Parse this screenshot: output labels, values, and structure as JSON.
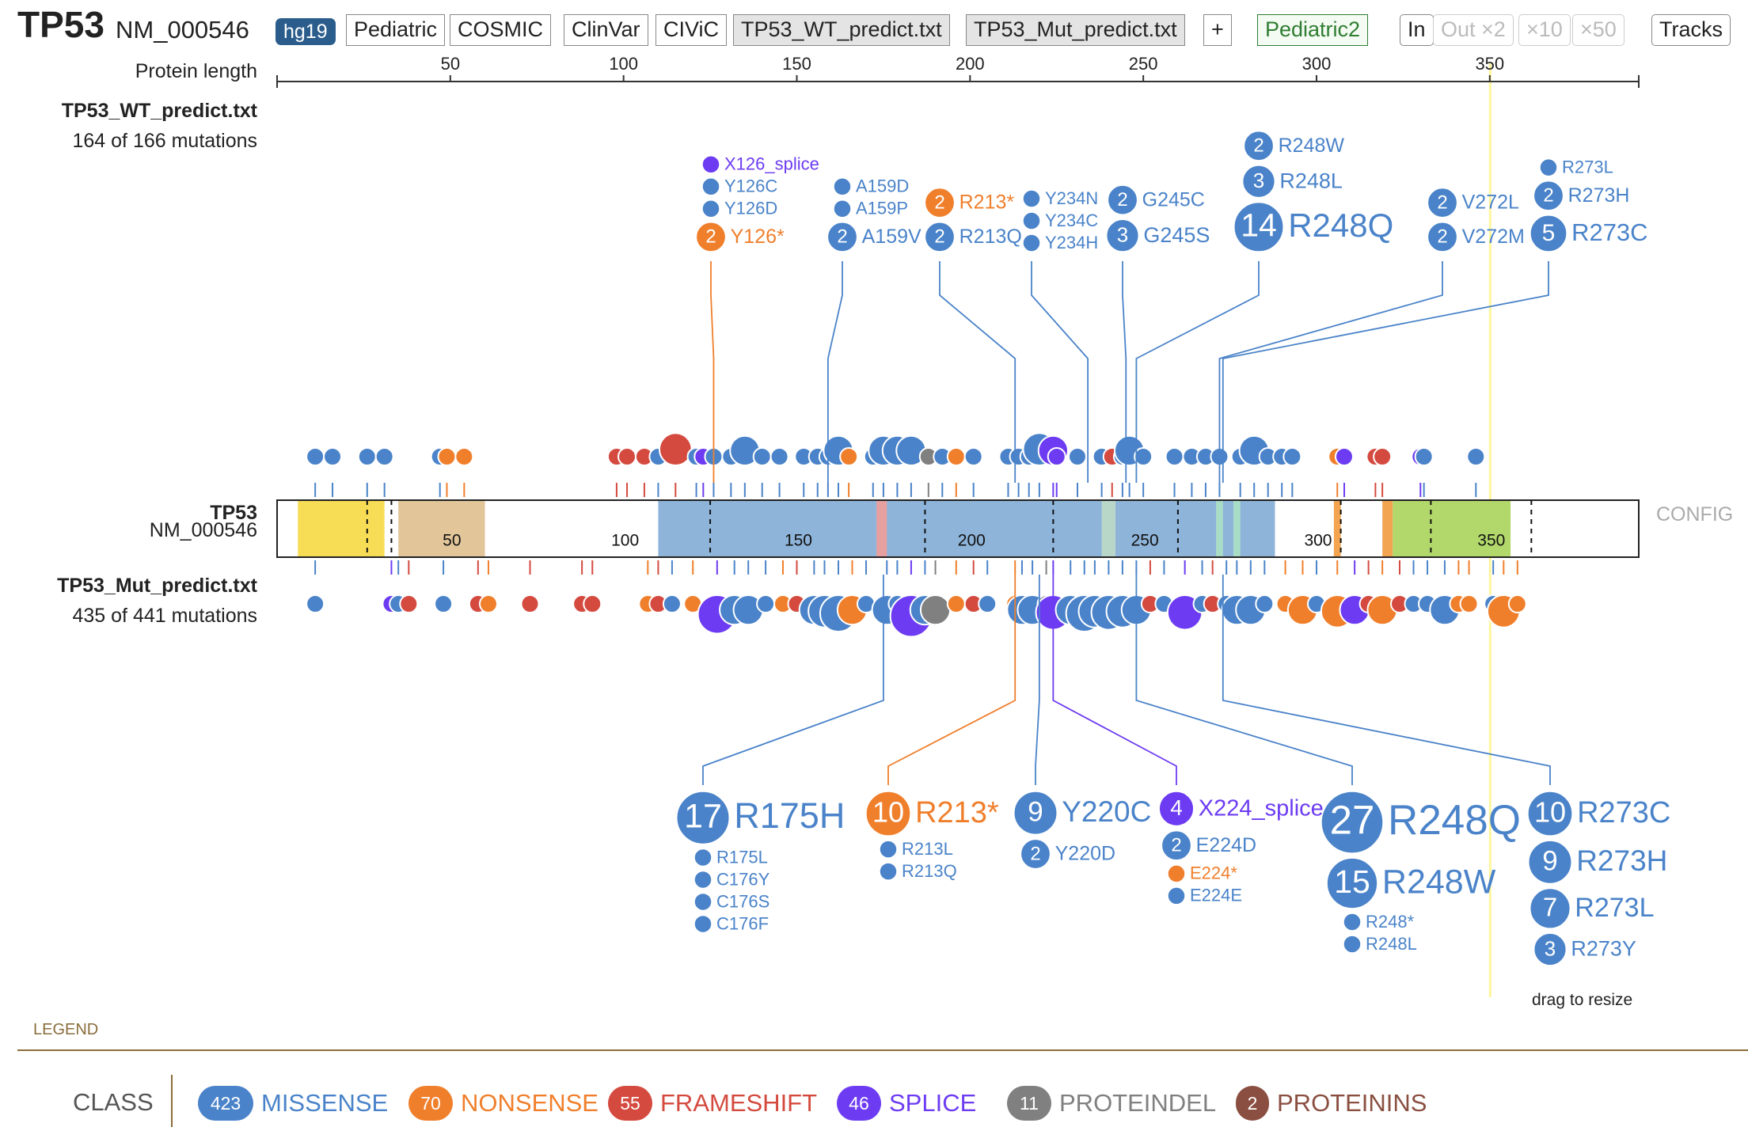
{
  "header": {
    "gene": "TP53",
    "isoform": "NM_000546",
    "genome": "hg19",
    "buttons": [
      {
        "label": "Pediatric",
        "style": "plain"
      },
      {
        "label": "COSMIC",
        "style": "plain"
      },
      {
        "label": "ClinVar",
        "style": "plain"
      },
      {
        "label": "CIViC",
        "style": "plain"
      },
      {
        "label": "TP53_WT_predict.txt",
        "style": "grey"
      },
      {
        "label": "TP53_Mut_predict.txt",
        "style": "grey"
      },
      {
        "label": "+",
        "style": "plain"
      }
    ],
    "pediatric2": "Pediatric2",
    "zoom": {
      "in": "In",
      "out": "Out ×2",
      "x10": "×10",
      "x50": "×50"
    },
    "tracks_label": "Tracks"
  },
  "ruler": {
    "label": "Protein length",
    "protein_length": 393,
    "ticks": [
      "50",
      "100",
      "150",
      "200",
      "250",
      "300",
      "350"
    ],
    "highlight_aa": 350,
    "highlight_color": "#fff59d"
  },
  "tracks": {
    "wt": {
      "name": "TP53_WT_predict.txt",
      "count_text": "164 of 166 mutations"
    },
    "gene": {
      "name": "TP53",
      "isoform": "NM_000546",
      "config_label": "CONFIG"
    },
    "mut": {
      "name": "TP53_Mut_predict.txt",
      "count_text": "435 of 441 mutations"
    },
    "resize_hint": "drag to resize"
  },
  "domains": [
    {
      "start": 6,
      "end": 29,
      "color": "#f7dd55"
    },
    {
      "start": 29,
      "end": 31,
      "color": "#f7dd55"
    },
    {
      "start": 35,
      "end": 60,
      "color": "#e2c69a"
    },
    {
      "start": 110,
      "end": 288,
      "color": "#8eb4d9"
    },
    {
      "start": 173,
      "end": 176,
      "color": "#e6a0a0"
    },
    {
      "start": 238,
      "end": 242,
      "color": "#b9d7c9"
    },
    {
      "start": 271,
      "end": 273,
      "color": "#a9dcc6"
    },
    {
      "start": 276,
      "end": 278,
      "color": "#a9dcc6"
    },
    {
      "start": 305,
      "end": 307,
      "color": "#f2a451"
    },
    {
      "start": 319,
      "end": 322,
      "color": "#f2a451"
    },
    {
      "start": 322,
      "end": 356,
      "color": "#b2d86b"
    }
  ],
  "domain_dividers": [
    26,
    33,
    125,
    187,
    224,
    260,
    307,
    333,
    362
  ],
  "domain_labels": [
    "50",
    "100",
    "150",
    "200",
    "250",
    "300",
    "350"
  ],
  "classes": {
    "missense": {
      "label": "MISSENSE",
      "count": "423",
      "color": "#4a83c9"
    },
    "nonsense": {
      "label": "NONSENSE",
      "count": "70",
      "color": "#f07f2c"
    },
    "frameshift": {
      "label": "FRAMESHIFT",
      "count": "55",
      "color": "#d44a3f"
    },
    "splice": {
      "label": "SPLICE",
      "count": "46",
      "color": "#6d3cf2"
    },
    "proteindel": {
      "label": "PROTEINDEL",
      "count": "11",
      "color": "#808080"
    },
    "proteinins": {
      "label": "PROTEININS",
      "count": "2",
      "color": "#8a4f41"
    }
  },
  "legend": {
    "title": "LEGEND",
    "class_label": "CLASS",
    "order": [
      "missense",
      "nonsense",
      "frameshift",
      "splice",
      "proteindel",
      "proteinins"
    ]
  },
  "wt_disks": [
    {
      "aa": 11,
      "c": "missense",
      "n": 1
    },
    {
      "aa": 16,
      "c": "missense",
      "n": 1
    },
    {
      "aa": 26,
      "c": "missense",
      "n": 1
    },
    {
      "aa": 31,
      "c": "missense",
      "n": 1
    },
    {
      "aa": 47,
      "c": "missense",
      "n": 1
    },
    {
      "aa": 49,
      "c": "nonsense",
      "n": 1
    },
    {
      "aa": 54,
      "c": "nonsense",
      "n": 1
    },
    {
      "aa": 98,
      "c": "frameshift",
      "n": 1
    },
    {
      "aa": 101,
      "c": "frameshift",
      "n": 1
    },
    {
      "aa": 106,
      "c": "frameshift",
      "n": 1
    },
    {
      "aa": 110,
      "c": "missense",
      "n": 1
    },
    {
      "aa": 115,
      "c": "frameshift",
      "n": 3
    },
    {
      "aa": 121,
      "c": "missense",
      "n": 1
    },
    {
      "aa": 123,
      "c": "splice",
      "n": 1
    },
    {
      "aa": 126,
      "c": "missense",
      "n": 1
    },
    {
      "aa": 131,
      "c": "missense",
      "n": 1
    },
    {
      "aa": 135,
      "c": "missense",
      "n": 2
    },
    {
      "aa": 140,
      "c": "missense",
      "n": 1
    },
    {
      "aa": 145,
      "c": "missense",
      "n": 1
    },
    {
      "aa": 152,
      "c": "missense",
      "n": 1
    },
    {
      "aa": 156,
      "c": "missense",
      "n": 1
    },
    {
      "aa": 159,
      "c": "missense",
      "n": 1
    },
    {
      "aa": 162,
      "c": "missense",
      "n": 2
    },
    {
      "aa": 165,
      "c": "nonsense",
      "n": 1
    },
    {
      "aa": 172,
      "c": "missense",
      "n": 1
    },
    {
      "aa": 175,
      "c": "missense",
      "n": 2
    },
    {
      "aa": 179,
      "c": "missense",
      "n": 2
    },
    {
      "aa": 183,
      "c": "missense",
      "n": 2
    },
    {
      "aa": 188,
      "c": "proteindel",
      "n": 1
    },
    {
      "aa": 192,
      "c": "missense",
      "n": 1
    },
    {
      "aa": 196,
      "c": "nonsense",
      "n": 1
    },
    {
      "aa": 201,
      "c": "missense",
      "n": 1
    },
    {
      "aa": 211,
      "c": "missense",
      "n": 1
    },
    {
      "aa": 214,
      "c": "missense",
      "n": 1
    },
    {
      "aa": 217,
      "c": "missense",
      "n": 1
    },
    {
      "aa": 220,
      "c": "missense",
      "n": 3
    },
    {
      "aa": 224,
      "c": "splice",
      "n": 2
    },
    {
      "aa": 225,
      "c": "splice",
      "n": 1
    },
    {
      "aa": 231,
      "c": "missense",
      "n": 1
    },
    {
      "aa": 238,
      "c": "missense",
      "n": 1
    },
    {
      "aa": 241,
      "c": "frameshift",
      "n": 1
    },
    {
      "aa": 244,
      "c": "missense",
      "n": 1
    },
    {
      "aa": 246,
      "c": "missense",
      "n": 2
    },
    {
      "aa": 250,
      "c": "missense",
      "n": 1
    },
    {
      "aa": 259,
      "c": "missense",
      "n": 1
    },
    {
      "aa": 264,
      "c": "missense",
      "n": 1
    },
    {
      "aa": 268,
      "c": "missense",
      "n": 1
    },
    {
      "aa": 272,
      "c": "missense",
      "n": 1
    },
    {
      "aa": 278,
      "c": "missense",
      "n": 1
    },
    {
      "aa": 282,
      "c": "missense",
      "n": 2
    },
    {
      "aa": 286,
      "c": "missense",
      "n": 1
    },
    {
      "aa": 290,
      "c": "missense",
      "n": 1
    },
    {
      "aa": 293,
      "c": "missense",
      "n": 1
    },
    {
      "aa": 306,
      "c": "nonsense",
      "n": 1
    },
    {
      "aa": 308,
      "c": "splice",
      "n": 1
    },
    {
      "aa": 317,
      "c": "frameshift",
      "n": 1
    },
    {
      "aa": 319,
      "c": "frameshift",
      "n": 1
    },
    {
      "aa": 330,
      "c": "splice",
      "n": 1
    },
    {
      "aa": 331,
      "c": "missense",
      "n": 1
    },
    {
      "aa": 346,
      "c": "missense",
      "n": 1
    }
  ],
  "mut_disks": [
    {
      "aa": 11,
      "c": "missense",
      "n": 1
    },
    {
      "aa": 33,
      "c": "splice",
      "n": 1
    },
    {
      "aa": 35,
      "c": "missense",
      "n": 1
    },
    {
      "aa": 38,
      "c": "frameshift",
      "n": 1
    },
    {
      "aa": 48,
      "c": "missense",
      "n": 1
    },
    {
      "aa": 58,
      "c": "frameshift",
      "n": 1
    },
    {
      "aa": 61,
      "c": "nonsense",
      "n": 1
    },
    {
      "aa": 73,
      "c": "frameshift",
      "n": 1
    },
    {
      "aa": 88,
      "c": "frameshift",
      "n": 1
    },
    {
      "aa": 91,
      "c": "frameshift",
      "n": 1
    },
    {
      "aa": 107,
      "c": "nonsense",
      "n": 1
    },
    {
      "aa": 110,
      "c": "frameshift",
      "n": 1
    },
    {
      "aa": 114,
      "c": "missense",
      "n": 1
    },
    {
      "aa": 120,
      "c": "nonsense",
      "n": 1
    },
    {
      "aa": 127,
      "c": "splice",
      "n": 6
    },
    {
      "aa": 132,
      "c": "missense",
      "n": 2
    },
    {
      "aa": 136,
      "c": "missense",
      "n": 2
    },
    {
      "aa": 141,
      "c": "missense",
      "n": 1
    },
    {
      "aa": 146,
      "c": "nonsense",
      "n": 1
    },
    {
      "aa": 150,
      "c": "frameshift",
      "n": 1
    },
    {
      "aa": 155,
      "c": "missense",
      "n": 2
    },
    {
      "aa": 158,
      "c": "missense",
      "n": 3
    },
    {
      "aa": 162,
      "c": "missense",
      "n": 5
    },
    {
      "aa": 166,
      "c": "nonsense",
      "n": 2
    },
    {
      "aa": 170,
      "c": "missense",
      "n": 1
    },
    {
      "aa": 176,
      "c": "missense",
      "n": 2
    },
    {
      "aa": 179,
      "c": "missense",
      "n": 1
    },
    {
      "aa": 183,
      "c": "splice",
      "n": 8
    },
    {
      "aa": 187,
      "c": "missense",
      "n": 2
    },
    {
      "aa": 190,
      "c": "proteindel",
      "n": 2
    },
    {
      "aa": 196,
      "c": "nonsense",
      "n": 1
    },
    {
      "aa": 201,
      "c": "frameshift",
      "n": 1
    },
    {
      "aa": 205,
      "c": "missense",
      "n": 1
    },
    {
      "aa": 213,
      "c": "nonsense",
      "n": 1
    },
    {
      "aa": 215,
      "c": "missense",
      "n": 2
    },
    {
      "aa": 218,
      "c": "missense",
      "n": 2
    },
    {
      "aa": 222,
      "c": "proteindel",
      "n": 1
    },
    {
      "aa": 224,
      "c": "splice",
      "n": 4
    },
    {
      "aa": 229,
      "c": "missense",
      "n": 2
    },
    {
      "aa": 233,
      "c": "missense",
      "n": 5
    },
    {
      "aa": 236,
      "c": "missense",
      "n": 3
    },
    {
      "aa": 240,
      "c": "missense",
      "n": 4
    },
    {
      "aa": 244,
      "c": "missense",
      "n": 3
    },
    {
      "aa": 248,
      "c": "missense",
      "n": 2
    },
    {
      "aa": 252,
      "c": "frameshift",
      "n": 1
    },
    {
      "aa": 256,
      "c": "missense",
      "n": 1
    },
    {
      "aa": 262,
      "c": "splice",
      "n": 4
    },
    {
      "aa": 267,
      "c": "missense",
      "n": 1
    },
    {
      "aa": 270,
      "c": "frameshift",
      "n": 1
    },
    {
      "aa": 274,
      "c": "missense",
      "n": 1
    },
    {
      "aa": 277,
      "c": "missense",
      "n": 2
    },
    {
      "aa": 281,
      "c": "missense",
      "n": 2
    },
    {
      "aa": 285,
      "c": "missense",
      "n": 1
    },
    {
      "aa": 291,
      "c": "nonsense",
      "n": 1
    },
    {
      "aa": 296,
      "c": "nonsense",
      "n": 2
    },
    {
      "aa": 300,
      "c": "missense",
      "n": 1
    },
    {
      "aa": 306,
      "c": "nonsense",
      "n": 3
    },
    {
      "aa": 311,
      "c": "splice",
      "n": 2
    },
    {
      "aa": 315,
      "c": "frameshift",
      "n": 1
    },
    {
      "aa": 319,
      "c": "nonsense",
      "n": 2
    },
    {
      "aa": 324,
      "c": "frameshift",
      "n": 1
    },
    {
      "aa": 328,
      "c": "missense",
      "n": 1
    },
    {
      "aa": 332,
      "c": "missense",
      "n": 1
    },
    {
      "aa": 337,
      "c": "missense",
      "n": 2
    },
    {
      "aa": 341,
      "c": "nonsense",
      "n": 1
    },
    {
      "aa": 344,
      "c": "nonsense",
      "n": 1
    },
    {
      "aa": 351,
      "c": "missense",
      "n": 1
    },
    {
      "aa": 354,
      "c": "nonsense",
      "n": 3
    },
    {
      "aa": 358,
      "c": "nonsense",
      "n": 1
    }
  ],
  "wt_labels": [
    {
      "anchor": 126,
      "items": [
        {
          "text": "X126_splice",
          "c": "splice",
          "n": 1
        },
        {
          "text": "Y126C",
          "c": "missense",
          "n": 1
        },
        {
          "text": "Y126D",
          "c": "missense",
          "n": 1
        },
        {
          "text": "Y126*",
          "c": "nonsense",
          "n": 2
        }
      ]
    },
    {
      "anchor": 159,
      "items": [
        {
          "text": "A159D",
          "c": "missense",
          "n": 1
        },
        {
          "text": "A159P",
          "c": "missense",
          "n": 1
        },
        {
          "text": "A159V",
          "c": "missense",
          "n": 2
        }
      ]
    },
    {
      "anchor": 213,
      "items": [
        {
          "text": "R213*",
          "c": "nonsense",
          "n": 2
        },
        {
          "text": "R213Q",
          "c": "missense",
          "n": 2
        }
      ]
    },
    {
      "anchor": 234,
      "items": [
        {
          "text": "Y234N",
          "c": "missense",
          "n": 1
        },
        {
          "text": "Y234C",
          "c": "missense",
          "n": 1
        },
        {
          "text": "Y234H",
          "c": "missense",
          "n": 1
        }
      ]
    },
    {
      "anchor": 245,
      "items": [
        {
          "text": "G245C",
          "c": "missense",
          "n": 2
        },
        {
          "text": "G245S",
          "c": "missense",
          "n": 3
        }
      ]
    },
    {
      "anchor": 248,
      "items": [
        {
          "text": "R248W",
          "c": "missense",
          "n": 2
        },
        {
          "text": "R248L",
          "c": "missense",
          "n": 3
        },
        {
          "text": "R248Q",
          "c": "missense",
          "n": 14
        }
      ]
    },
    {
      "anchor": 272,
      "items": [
        {
          "text": "V272L",
          "c": "missense",
          "n": 2
        },
        {
          "text": "V272M",
          "c": "missense",
          "n": 2
        }
      ]
    },
    {
      "anchor": 273,
      "items": [
        {
          "text": "R273L",
          "c": "missense",
          "n": 1
        },
        {
          "text": "R273H",
          "c": "missense",
          "n": 2
        },
        {
          "text": "R273C",
          "c": "missense",
          "n": 5
        }
      ]
    }
  ],
  "mut_labels": [
    {
      "anchor": 175,
      "items": [
        {
          "text": "R175H",
          "c": "missense",
          "n": 17
        },
        {
          "text": "R175L",
          "c": "missense",
          "n": 1
        },
        {
          "text": "C176Y",
          "c": "missense",
          "n": 1
        },
        {
          "text": "C176S",
          "c": "missense",
          "n": 1
        },
        {
          "text": "C176F",
          "c": "missense",
          "n": 1
        }
      ]
    },
    {
      "anchor": 213,
      "items": [
        {
          "text": "R213*",
          "c": "nonsense",
          "n": 10
        },
        {
          "text": "R213L",
          "c": "missense",
          "n": 1
        },
        {
          "text": "R213Q",
          "c": "missense",
          "n": 1
        }
      ]
    },
    {
      "anchor": 220,
      "items": [
        {
          "text": "Y220C",
          "c": "missense",
          "n": 9
        },
        {
          "text": "Y220D",
          "c": "missense",
          "n": 2
        }
      ]
    },
    {
      "anchor": 224,
      "items": [
        {
          "text": "X224_splice",
          "c": "splice",
          "n": 4
        },
        {
          "text": "E224D",
          "c": "missense",
          "n": 2
        },
        {
          "text": "E224*",
          "c": "nonsense",
          "n": 1
        },
        {
          "text": "E224E",
          "c": "missense",
          "n": 1
        }
      ]
    },
    {
      "anchor": 248,
      "items": [
        {
          "text": "R248Q",
          "c": "missense",
          "n": 27
        },
        {
          "text": "R248W",
          "c": "missense",
          "n": 15
        },
        {
          "text": "R248*",
          "c": "missense",
          "n": 1
        },
        {
          "text": "R248L",
          "c": "missense",
          "n": 1
        }
      ]
    },
    {
      "anchor": 273,
      "items": [
        {
          "text": "R273C",
          "c": "missense",
          "n": 10
        },
        {
          "text": "R273H",
          "c": "missense",
          "n": 9
        },
        {
          "text": "R273L",
          "c": "missense",
          "n": 7
        },
        {
          "text": "R273Y",
          "c": "missense",
          "n": 3
        }
      ]
    }
  ]
}
